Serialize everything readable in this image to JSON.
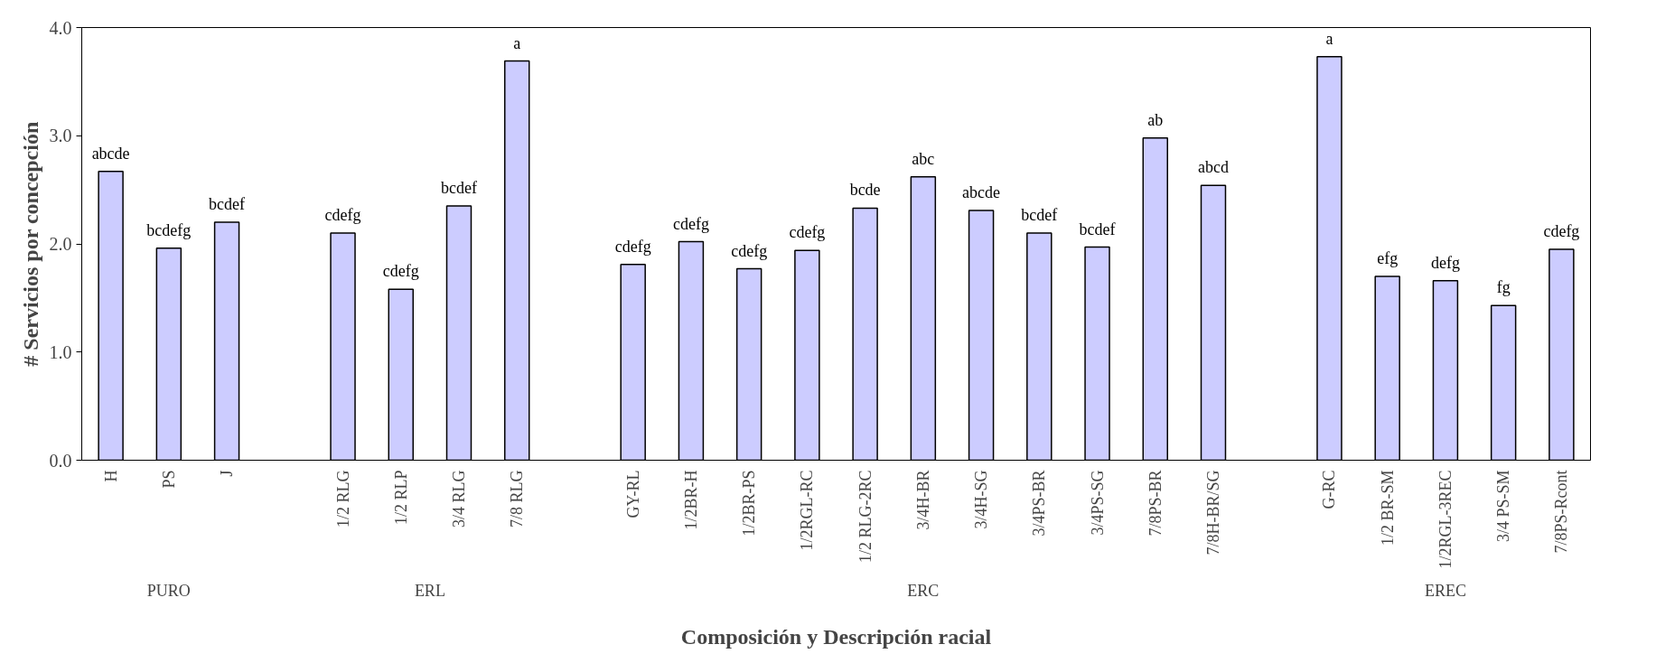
{
  "chart_data": {
    "type": "bar",
    "xlabel": "Composición y Descripción racial",
    "ylabel": "# Servicios por concepción",
    "categories": [
      "H",
      "PS",
      "J",
      null,
      "1/2 RLG",
      "1/2 RLP",
      "3/4 RLG",
      "7/8 RLG",
      null,
      "GY-RL",
      "1/2BR-H",
      "1/2BR-PS",
      "1/2RGL-RC",
      "1/2 RLG-2RC",
      "3/4H-BR",
      "3/4H-SG",
      "3/4PS-BR",
      "3/4PS-SG",
      "7/8PS-BR",
      "7/8H-BR/SG",
      null,
      "G-RC",
      "1/2 BR-SM",
      "1/2RGL-3REC",
      "3/4 PS-SM",
      "7/8PS-Rcont"
    ],
    "values": [
      2.67,
      1.96,
      2.2,
      null,
      2.1,
      1.58,
      2.35,
      3.69,
      null,
      1.81,
      2.02,
      1.77,
      1.94,
      2.33,
      2.62,
      2.31,
      2.1,
      1.97,
      2.98,
      2.54,
      null,
      3.73,
      1.7,
      1.66,
      1.43,
      1.95
    ],
    "value_labels": [
      "abcde",
      "bcdefg",
      "bcdef",
      null,
      "cdefg",
      "cdefg",
      "bcdef",
      "a",
      null,
      "cdefg",
      "cdefg",
      "cdefg",
      "cdefg",
      "bcde",
      "abc",
      "abcde",
      "bcdef",
      "bcdef",
      "ab",
      "abcd",
      null,
      "a",
      "efg",
      "defg",
      "fg",
      "cdefg"
    ],
    "color": "#ccccff",
    "ylim": [
      0,
      4
    ],
    "yticks": [
      {
        "value": 0,
        "label": "0.0"
      },
      {
        "value": 1,
        "label": "1.0"
      },
      {
        "value": 2,
        "label": "2.0"
      },
      {
        "value": 3,
        "label": "3.0"
      },
      {
        "value": 4,
        "label": "4.0"
      }
    ],
    "grid": false,
    "annotations": [
      "PURO",
      "ERL",
      "ERC",
      "EREC"
    ]
  }
}
